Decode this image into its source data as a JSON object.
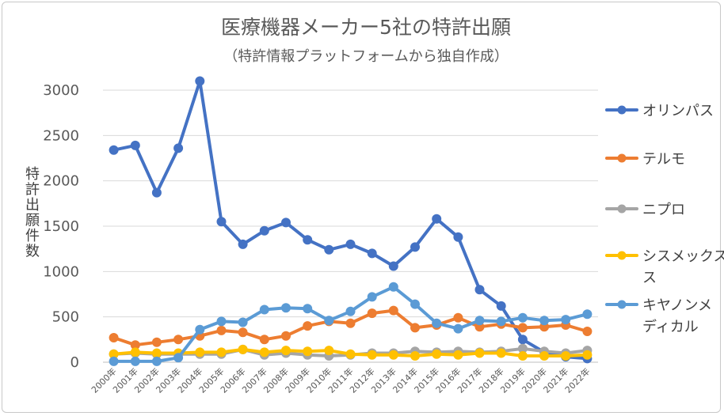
{
  "chart_data": {
    "type": "line",
    "title": "医療機器メーカー5社の特許出願",
    "subtitle": "（特許情報プラットフォームから独自作成）",
    "xlabel": "",
    "ylabel": "特許出願件数",
    "ylim": [
      0,
      3000
    ],
    "yticks": [
      0,
      500,
      1000,
      1500,
      2000,
      2500,
      3000
    ],
    "grid": true,
    "legend_position": "right",
    "categories": [
      "2000年",
      "2001年",
      "2002年",
      "2003年",
      "2004年",
      "2005年",
      "2006年",
      "2007年",
      "2008年",
      "2009年",
      "2010年",
      "2011年",
      "2012年",
      "2013年",
      "2014年",
      "2015年",
      "2016年",
      "2017年",
      "2018年",
      "2019年",
      "2020年",
      "2021年",
      "2022年"
    ],
    "series": [
      {
        "name": "オリンパス",
        "color": "#4472c4",
        "values": [
          2340,
          2390,
          1870,
          2360,
          3100,
          1550,
          1300,
          1450,
          1540,
          1350,
          1240,
          1300,
          1200,
          1060,
          1270,
          1580,
          1380,
          800,
          620,
          250,
          110,
          60,
          40
        ]
      },
      {
        "name": "テルモ",
        "color": "#ed7d31",
        "values": [
          270,
          190,
          220,
          250,
          290,
          350,
          330,
          250,
          290,
          400,
          450,
          430,
          540,
          570,
          380,
          410,
          490,
          390,
          420,
          380,
          390,
          410,
          340
        ]
      },
      {
        "name": "ニプロ",
        "color": "#a5a5a5",
        "values": [
          90,
          100,
          90,
          90,
          90,
          90,
          140,
          80,
          100,
          80,
          70,
          80,
          100,
          100,
          120,
          110,
          120,
          110,
          120,
          150,
          120,
          100,
          130
        ]
      },
      {
        "name": "シスメックス",
        "color": "#ffc000",
        "values": [
          90,
          110,
          100,
          100,
          110,
          110,
          140,
          110,
          130,
          120,
          130,
          90,
          80,
          80,
          70,
          90,
          80,
          100,
          100,
          70,
          70,
          70,
          80
        ]
      },
      {
        "name": "キヤノンメディカル",
        "color": "#5b9bd5",
        "values": [
          10,
          10,
          10,
          50,
          360,
          450,
          440,
          580,
          600,
          590,
          460,
          560,
          720,
          830,
          640,
          430,
          370,
          460,
          450,
          490,
          460,
          470,
          530
        ]
      }
    ]
  },
  "legend_items": [
    {
      "line1": "オリンパス",
      "line2": ""
    },
    {
      "line1": "テルモ",
      "line2": ""
    },
    {
      "line1": "ニプロ",
      "line2": ""
    },
    {
      "line1": "シスメックス",
      "line2": "ス"
    },
    {
      "line1": "キヤノンメ",
      "line2": "ディカル"
    }
  ],
  "ylabel_chars": [
    "特",
    "許",
    "出",
    "願",
    "件",
    "数"
  ]
}
